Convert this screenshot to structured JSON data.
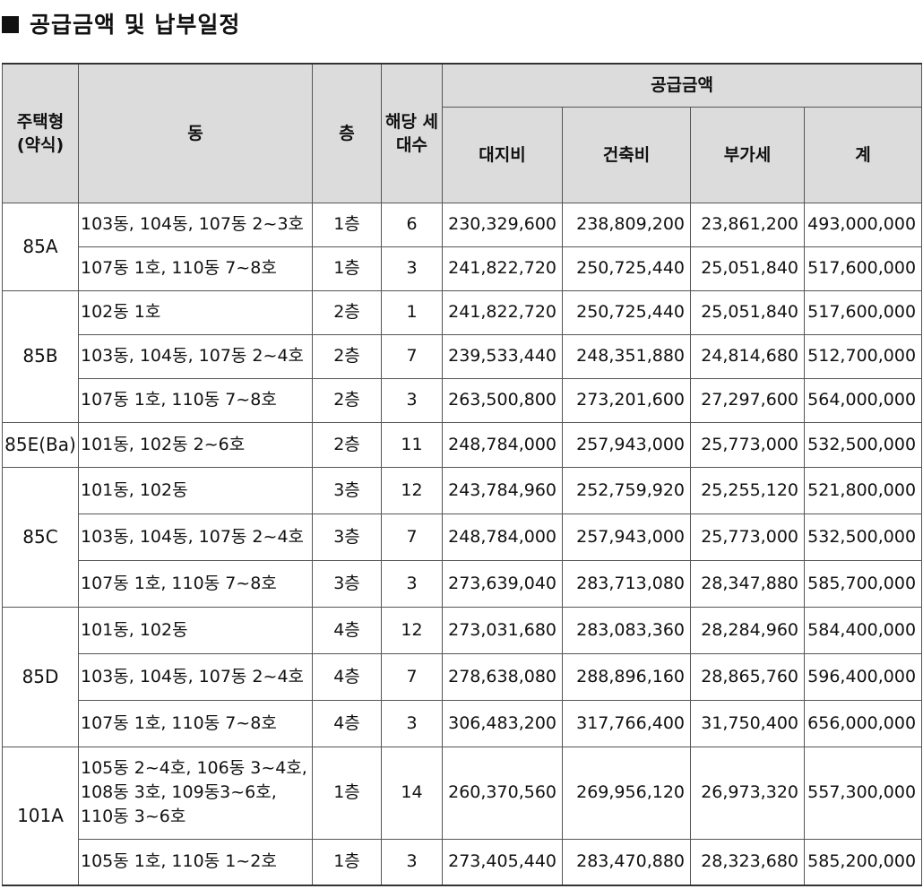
{
  "page": {
    "title": "공급금액 및 납부일정"
  },
  "table": {
    "headers": {
      "type": "주택형 (약식)",
      "dong": "동",
      "floor": "층",
      "units": "해당 세대수",
      "supply_amount": "공급금액",
      "land": "대지비",
      "building": "건축비",
      "vat": "부가세",
      "total": "계"
    },
    "groups": [
      {
        "type": "85A",
        "rows": [
          {
            "dong": "103동, 104동, 107동 2~3호",
            "floor": "1층",
            "units": "6",
            "land": "230,329,600",
            "building": "238,809,200",
            "vat": "23,861,200",
            "total": "493,000,000"
          },
          {
            "dong": "107동 1호, 110동 7~8호",
            "floor": "1층",
            "units": "3",
            "land": "241,822,720",
            "building": "250,725,440",
            "vat": "25,051,840",
            "total": "517,600,000"
          }
        ]
      },
      {
        "type": "85B",
        "rows": [
          {
            "dong": "102동 1호",
            "floor": "2층",
            "units": "1",
            "land": "241,822,720",
            "building": "250,725,440",
            "vat": "25,051,840",
            "total": "517,600,000"
          },
          {
            "dong": "103동, 104동, 107동 2~4호",
            "floor": "2층",
            "units": "7",
            "land": "239,533,440",
            "building": "248,351,880",
            "vat": "24,814,680",
            "total": "512,700,000"
          },
          {
            "dong": "107동 1호, 110동 7~8호",
            "floor": "2층",
            "units": "3",
            "land": "263,500,800",
            "building": "273,201,600",
            "vat": "27,297,600",
            "total": "564,000,000"
          }
        ]
      },
      {
        "type": "85E(Ba)",
        "rows": [
          {
            "dong": "101동, 102동 2~6호",
            "floor": "2층",
            "units": "11",
            "land": "248,784,000",
            "building": "257,943,000",
            "vat": "25,773,000",
            "total": "532,500,000"
          }
        ]
      },
      {
        "type": "85C",
        "rows": [
          {
            "dong": "101동, 102동",
            "floor": "3층",
            "units": "12",
            "land": "243,784,960",
            "building": "252,759,920",
            "vat": "25,255,120",
            "total": "521,800,000"
          },
          {
            "dong": "103동, 104동, 107동 2~4호",
            "floor": "3층",
            "units": "7",
            "land": "248,784,000",
            "building": "257,943,000",
            "vat": "25,773,000",
            "total": "532,500,000"
          },
          {
            "dong": "107동 1호, 110동 7~8호",
            "floor": "3층",
            "units": "3",
            "land": "273,639,040",
            "building": "283,713,080",
            "vat": "28,347,880",
            "total": "585,700,000"
          }
        ]
      },
      {
        "type": "85D",
        "rows": [
          {
            "dong": "101동, 102동",
            "floor": "4층",
            "units": "12",
            "land": "273,031,680",
            "building": "283,083,360",
            "vat": "28,284,960",
            "total": "584,400,000"
          },
          {
            "dong": "103동, 104동, 107동 2~4호",
            "floor": "4층",
            "units": "7",
            "land": "278,638,080",
            "building": "288,896,160",
            "vat": "28,865,760",
            "total": "596,400,000"
          },
          {
            "dong": "107동 1호, 110동 7~8호",
            "floor": "4층",
            "units": "3",
            "land": "306,483,200",
            "building": "317,766,400",
            "vat": "31,750,400",
            "total": "656,000,000"
          }
        ]
      },
      {
        "type": "101A",
        "rows": [
          {
            "dong": "105동 2~4호, 106동 3~4호, 108동 3호, 109동3~6호, 110동 3~6호",
            "floor": "1층",
            "units": "14",
            "land": "260,370,560",
            "building": "269,956,120",
            "vat": "26,973,320",
            "total": "557,300,000"
          },
          {
            "dong": "105동 1호, 110동 1~2호",
            "floor": "1층",
            "units": "3",
            "land": "273,405,440",
            "building": "283,470,880",
            "vat": "28,323,680",
            "total": "585,200,000"
          }
        ]
      }
    ]
  }
}
